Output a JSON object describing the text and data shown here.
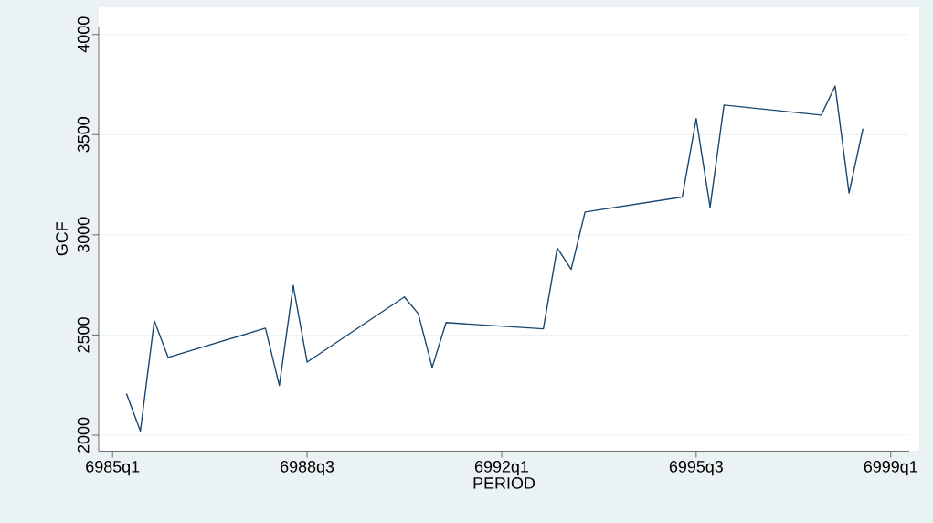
{
  "chart_data": {
    "type": "line",
    "xlabel": "PERIOD",
    "ylabel": "GCF",
    "x": [
      "6985-04",
      "6985-07",
      "6985-10",
      "6986-01",
      "6987-10",
      "6988-01",
      "6988-04",
      "6988-07",
      "6990-04",
      "6990-07",
      "6990-10",
      "6991-01",
      "6992-10",
      "6993-01",
      "6993-04",
      "6993-07",
      "6995-04",
      "6995-07",
      "6995-10",
      "6996-01",
      "6997-10",
      "6998-01",
      "6998-04",
      "6998-07"
    ],
    "series": [
      {
        "color": "#1a476f",
        "values": [
          2207,
          2020,
          2571,
          2388,
          2534,
          2248,
          2747,
          2365,
          2690,
          2606,
          2338,
          2562,
          2531,
          2935,
          2828,
          3114,
          3189,
          3580,
          3138,
          3648,
          3598,
          3743,
          3209,
          3530
        ]
      }
    ],
    "xlim": [
      "6984-10",
      "6999-05"
    ],
    "ylim": [
      1920,
      4040
    ],
    "xticks": [
      {
        "value": "6985-01",
        "label": "6985q1"
      },
      {
        "value": "6988-07",
        "label": "6988q3"
      },
      {
        "value": "6992-01",
        "label": "6992q1"
      },
      {
        "value": "6995-07",
        "label": "6995q3"
      },
      {
        "value": "6999-01",
        "label": "6999q1"
      }
    ],
    "yticks": [
      2000,
      2500,
      3000,
      3500,
      4000
    ],
    "grid": "y",
    "marker": "none",
    "line_style": "solid"
  }
}
